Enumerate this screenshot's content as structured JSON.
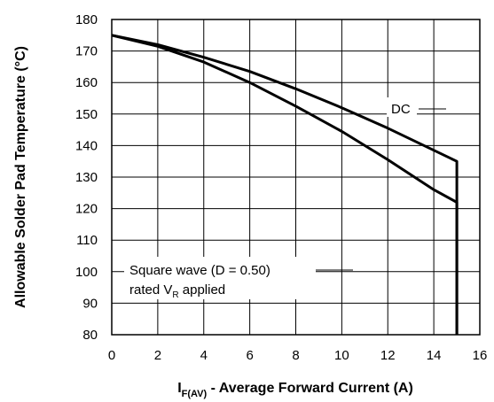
{
  "chart_data": {
    "type": "line",
    "xlabel": {
      "main": "I",
      "sub": "F(AV)",
      "rest": " - Average Forward Current (A)"
    },
    "ylabel": "Allowable Solder Pad Temperature (°C)",
    "xlim": [
      0,
      16
    ],
    "ylim": [
      80,
      180
    ],
    "xticks": [
      0,
      2,
      4,
      6,
      8,
      10,
      12,
      14,
      16
    ],
    "yticks": [
      80,
      90,
      100,
      110,
      120,
      130,
      140,
      150,
      160,
      170,
      180
    ],
    "grid": true,
    "series": [
      {
        "name": "DC",
        "x": [
          0,
          2,
          4,
          6,
          8,
          10,
          12,
          14,
          15,
          15
        ],
        "y": [
          175,
          172,
          168,
          163.5,
          158,
          152,
          145.5,
          138.5,
          135,
          80
        ]
      },
      {
        "name": "Square wave (D = 0.50) rated VR applied",
        "x": [
          0,
          2,
          4,
          6,
          8,
          10,
          12,
          14,
          15,
          15
        ],
        "y": [
          175,
          171.5,
          166.5,
          160,
          152.5,
          144.5,
          135.5,
          126,
          122,
          80
        ]
      }
    ],
    "annotations": {
      "dc": "DC",
      "square_line1": "Square wave (D = 0.50)",
      "square_line2_main": "rated V",
      "square_line2_sub": "R",
      "square_line2_rest": " applied"
    }
  },
  "colors": {
    "line": "#000000",
    "grid": "#000000"
  }
}
